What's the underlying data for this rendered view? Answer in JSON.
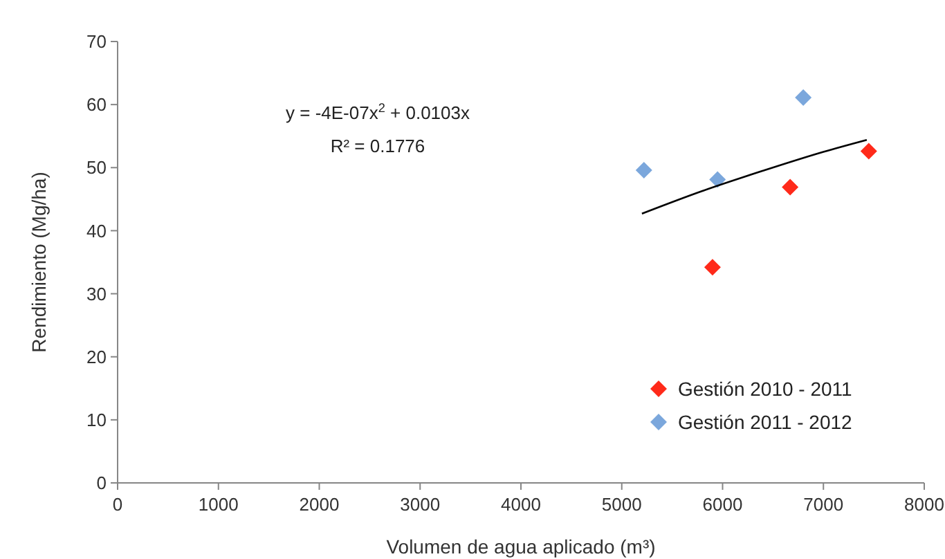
{
  "chart_data": {
    "type": "scatter",
    "xlabel": "Volumen de agua aplicado (m³)",
    "ylabel": "Rendimiento (Mg/ha)",
    "xlim": [
      0,
      8000
    ],
    "xticks": [
      0,
      1000,
      2000,
      3000,
      4000,
      5000,
      6000,
      7000,
      8000
    ],
    "ylim": [
      0,
      70
    ],
    "yticks": [
      0,
      10,
      20,
      30,
      40,
      50,
      60,
      70
    ],
    "grid": false,
    "legend": "bottom right",
    "marker": "diamond",
    "annotations": [
      "y = -4E-07x$^{2}$ + 0.0103x",
      "R² = 0.1776"
    ],
    "series": [
      {
        "name": "Gestión 2010 - 2011",
        "color": "#ff2a1a",
        "x": [
          5900,
          6670,
          7450
        ],
        "values": [
          34.2,
          46.9,
          52.6
        ]
      },
      {
        "name": "Gestión 2011 - 2012",
        "color": "#7ba7dc",
        "x": [
          5220,
          5950,
          6800
        ],
        "values": [
          49.6,
          48.1,
          61.1
        ]
      },
      {
        "type": "line",
        "color": "#000000",
        "marker": "none",
        "x": [
          5200,
          5800,
          6400,
          7000,
          7430
        ],
        "values": [
          42.7,
          46.3,
          49.5,
          52.5,
          54.4
        ]
      }
    ]
  }
}
